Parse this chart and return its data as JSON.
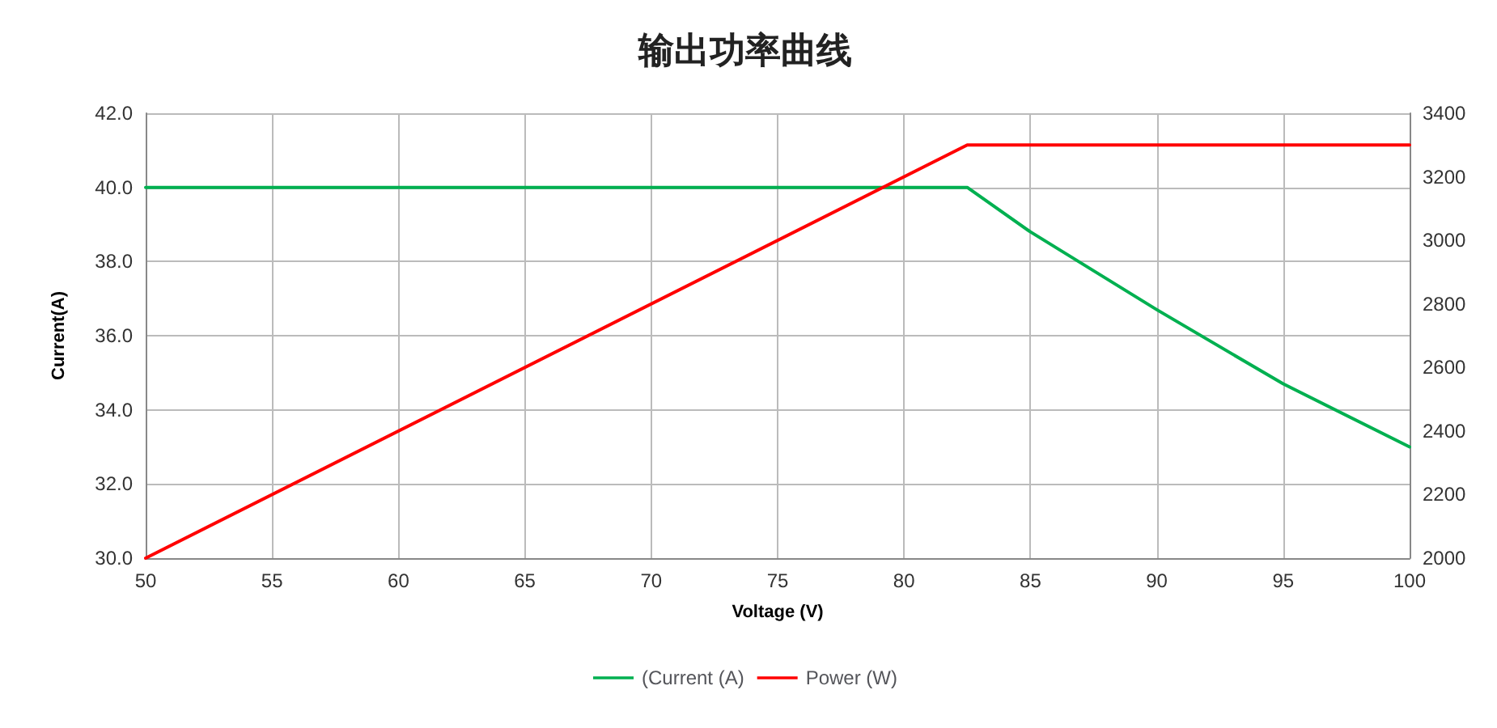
{
  "chart_data": {
    "type": "line",
    "title": "输出功率曲线",
    "xlabel": "Voltage (V)",
    "ylabel": "Current(A)",
    "xlim": [
      50,
      100
    ],
    "xticks": [
      50,
      55,
      60,
      65,
      70,
      75,
      80,
      85,
      90,
      95,
      100
    ],
    "ylim": [
      30,
      42
    ],
    "yticks": [
      {
        "value": 30,
        "label": "30.0"
      },
      {
        "value": 32,
        "label": "32.0"
      },
      {
        "value": 34,
        "label": "34.0"
      },
      {
        "value": 36,
        "label": "36.0"
      },
      {
        "value": 38,
        "label": "38.0"
      },
      {
        "value": 40,
        "label": "40.0"
      },
      {
        "value": 42,
        "label": "42.0"
      }
    ],
    "y2lim": [
      2000,
      3400
    ],
    "y2ticks": [
      2000,
      2200,
      2400,
      2600,
      2800,
      3000,
      3200,
      3400
    ],
    "grid": true,
    "legend": "bottom",
    "marker": "none",
    "line_style": "solid",
    "series": [
      {
        "name": "(Current (A)",
        "color": "#00b050",
        "x": [
          50,
          82.5,
          85,
          90,
          95,
          100
        ],
        "values": [
          40,
          40,
          38.8,
          36.7,
          34.7,
          33
        ]
      },
      {
        "name": "Power (W)",
        "color": "#ff0000",
        "axis": "y2",
        "x": [
          50,
          82.5,
          100
        ],
        "values": [
          2000,
          3300,
          3300
        ]
      }
    ]
  }
}
